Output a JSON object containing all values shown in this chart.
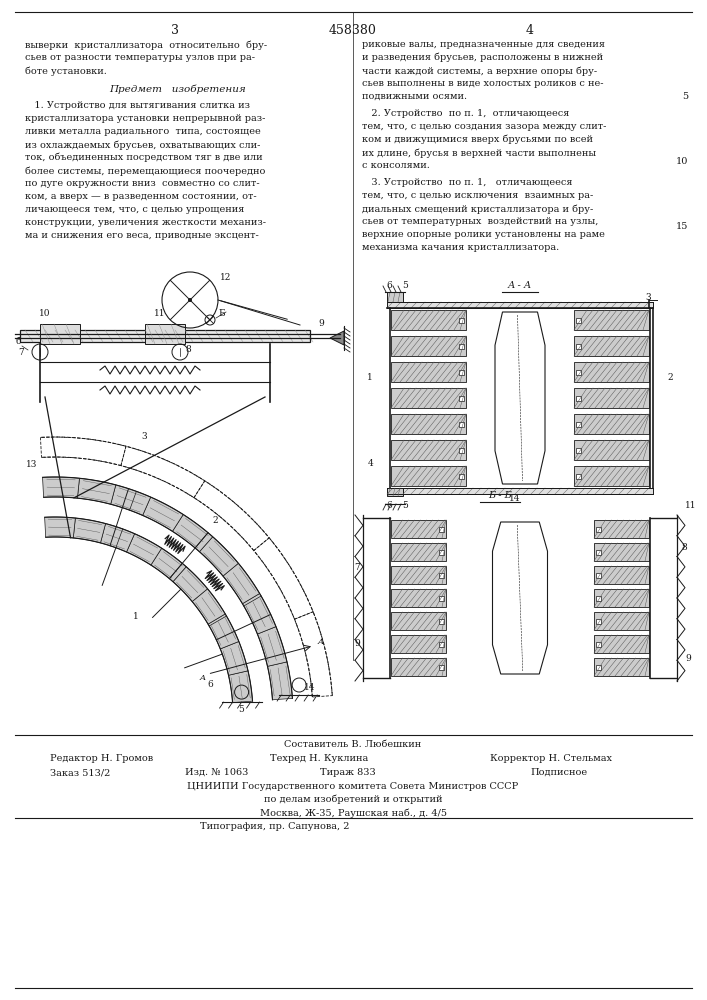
{
  "patent_number": "458380",
  "page_left": "3",
  "page_right": "4",
  "bg_color": "#ffffff",
  "text_color": "#1a1a1a",
  "title_section": "Предмет   изобретения",
  "left_column_text": [
    "выверки  кристаллизатора  относительно  бру-",
    "сьев от разности температуры узлов при ра-",
    "боте установки."
  ],
  "claim1_text": [
    "   1. Устройство для вытягивания слитка из",
    "кристаллизатора установки непрерывной раз-",
    "ливки металла радиального  типа, состоящее",
    "из охлаждаемых брусьев, охватывающих сли-",
    "ток, объединенных посредством тяг в две или",
    "более системы, перемещающиеся поочередно",
    "по дуге окружности вниз  совместно со слит-",
    "ком, а вверх — в разведенном состоянии, от-",
    "личающееся тем, что, с целью упрощения",
    "конструкции, увеличения жесткости механиз-",
    "ма и снижения его веса, приводные эксцент-"
  ],
  "right_col_top_text": [
    "риковые валы, предназначенные для сведения",
    "и разведения брусьев, расположены в нижней",
    "части каждой системы, а верхние опоры бру-",
    "сьев выполнены в виде холостых роликов с не-",
    "подвижными осями."
  ],
  "claim2_text": [
    "   2. Устройство  по п. 1,  отличающееся",
    "тем, что, с целью создания зазора между слит-",
    "ком и движущимися вверх брусьями по всей",
    "их длине, брусья в верхней части выполнены",
    "с консолями."
  ],
  "claim3_text": [
    "   3. Устройство  по п. 1,   отличающееся",
    "тем, что, с целью исключения  взаимных ра-",
    "диальных смещений кристаллизатора и бру-",
    "сьев от температурных  воздействий на узлы,",
    "верхние опорные ролики установлены на раме",
    "механизма качания кристаллизатора."
  ],
  "bottom_section": {
    "composer": "Составитель В. Любешкин",
    "editor": "Редактор Н. Громов",
    "tech": "Техред Н. Куклина",
    "corrector": "Корректор Н. Стельмах",
    "order": "Заказ 513/2",
    "publ": "Изд. № 1063",
    "circulation": "Тираж 833",
    "subscription": "Подписное",
    "org_line1": "ЦНИИПИ Государственного комитета Совета Министров СССР",
    "org_line2": "по делам изобретений и открытий",
    "org_line3": "Москва, Ж-35, Раушская наб., д. 4/5",
    "printer": "Типография, пр. Сапунова, 2"
  }
}
